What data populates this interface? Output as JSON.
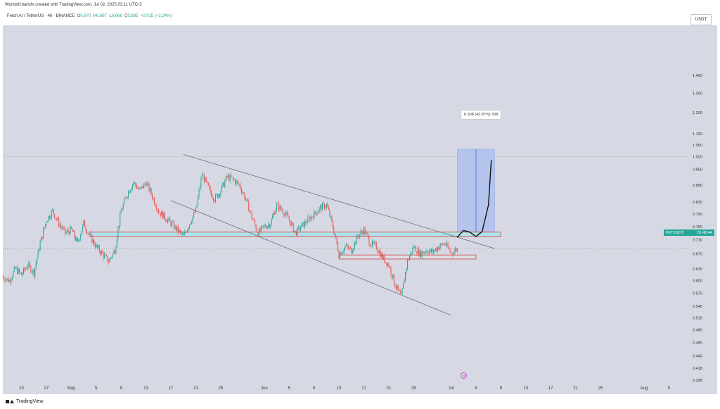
{
  "header": {
    "created_by": "Worldofchartsfx created with TradingView.com, Jul 02, 2025 03:11 UTC-3",
    "symbol": "Fetch.AI / TetherUS · 4h · BINANCE",
    "open_label": "O",
    "open": "0.670",
    "high_label": "H",
    "high": "0.687",
    "low_label": "L",
    "low": "0.666",
    "close_label": "C",
    "close": "0.685",
    "change": "+0.015 (+2.24%)"
  },
  "currency_badge": "USDT",
  "price_tag": {
    "symbol": "FETUSDT",
    "countdown": "01:48:44"
  },
  "measure": {
    "label": "0.308 (42.87%) 308"
  },
  "footer": {
    "brand": "TradingView"
  },
  "colors": {
    "background": "#d6d9e3",
    "bull": "#26a69a",
    "bear": "#ef5350",
    "support_zone_fill": "#aee3ea",
    "zone_border": "#d14b4b",
    "measure_fill": "#aec0ef",
    "measure_line": "#3e6ee0",
    "trend_line": "#6b6e78",
    "price_line": "#7f7f7f"
  },
  "chart_data": {
    "type": "candlestick",
    "y_scale": "log",
    "ylim": [
      0.398,
      1.72
    ],
    "y_ticks": [
      {
        "value": 1.4,
        "label": "1.400"
      },
      {
        "value": 1.3,
        "label": "1.300"
      },
      {
        "value": 1.2,
        "label": "1.200"
      },
      {
        "value": 1.1,
        "label": "1.100"
      },
      {
        "value": 1.05,
        "label": "1.050"
      },
      {
        "value": 1.0,
        "label": "1.000"
      },
      {
        "value": 0.95,
        "label": "0.950"
      },
      {
        "value": 0.89,
        "label": "0.890"
      },
      {
        "value": 0.83,
        "label": "0.830"
      },
      {
        "value": 0.79,
        "label": "0.790"
      },
      {
        "value": 0.75,
        "label": "0.750"
      },
      {
        "value": 0.71,
        "label": "0.710"
      },
      {
        "value": 0.67,
        "label": "0.670"
      },
      {
        "value": 0.63,
        "label": "0.630"
      },
      {
        "value": 0.6,
        "label": "0.600"
      },
      {
        "value": 0.57,
        "label": "0.570"
      },
      {
        "value": 0.54,
        "label": "0.540"
      },
      {
        "value": 0.515,
        "label": "0.515"
      },
      {
        "value": 0.49,
        "label": "0.490"
      },
      {
        "value": 0.465,
        "label": "0.465"
      },
      {
        "value": 0.44,
        "label": "0.440"
      },
      {
        "value": 0.418,
        "label": "0.418"
      },
      {
        "value": 0.398,
        "label": "0.398"
      }
    ],
    "x_ticks": [
      {
        "date": "2025-04-23",
        "label": "23"
      },
      {
        "date": "2025-04-27",
        "label": "27"
      },
      {
        "date": "2025-05-01",
        "label": "May"
      },
      {
        "date": "2025-05-05",
        "label": "5"
      },
      {
        "date": "2025-05-09",
        "label": "9"
      },
      {
        "date": "2025-05-13",
        "label": "13"
      },
      {
        "date": "2025-05-17",
        "label": "17"
      },
      {
        "date": "2025-05-21",
        "label": "21"
      },
      {
        "date": "2025-05-25",
        "label": "25"
      },
      {
        "date": "2025-06-01",
        "label": "Jun"
      },
      {
        "date": "2025-06-05",
        "label": "5"
      },
      {
        "date": "2025-06-09",
        "label": "9"
      },
      {
        "date": "2025-06-13",
        "label": "13"
      },
      {
        "date": "2025-06-17",
        "label": "17"
      },
      {
        "date": "2025-06-21",
        "label": "21"
      },
      {
        "date": "2025-06-25",
        "label": "25"
      },
      {
        "date": "2025-07-01",
        "label": "Jul"
      },
      {
        "date": "2025-07-05",
        "label": "5"
      },
      {
        "date": "2025-07-09",
        "label": "9"
      },
      {
        "date": "2025-07-13",
        "label": "13"
      },
      {
        "date": "2025-07-17",
        "label": "17"
      },
      {
        "date": "2025-07-21",
        "label": "21"
      },
      {
        "date": "2025-07-25",
        "label": "25"
      },
      {
        "date": "2025-08-01",
        "label": "Aug"
      },
      {
        "date": "2025-08-05",
        "label": "5"
      }
    ],
    "x_range": [
      "2025-04-20",
      "2025-08-08"
    ],
    "last_price": 0.685,
    "candle_path": [
      [
        "2025-04-20",
        0.61
      ],
      [
        "2025-04-21",
        0.6
      ],
      [
        "2025-04-22",
        0.63
      ],
      [
        "2025-04-23",
        0.615
      ],
      [
        "2025-04-24",
        0.64
      ],
      [
        "2025-04-25",
        0.62
      ],
      [
        "2025-04-26",
        0.7
      ],
      [
        "2025-04-27",
        0.77
      ],
      [
        "2025-04-28",
        0.8
      ],
      [
        "2025-04-29",
        0.76
      ],
      [
        "2025-04-30",
        0.73
      ],
      [
        "2025-05-01",
        0.74
      ],
      [
        "2025-05-02",
        0.7
      ],
      [
        "2025-05-03",
        0.76
      ],
      [
        "2025-05-04",
        0.72
      ],
      [
        "2025-05-05",
        0.69
      ],
      [
        "2025-05-06",
        0.67
      ],
      [
        "2025-05-07",
        0.65
      ],
      [
        "2025-05-08",
        0.68
      ],
      [
        "2025-05-09",
        0.8
      ],
      [
        "2025-05-10",
        0.86
      ],
      [
        "2025-05-11",
        0.9
      ],
      [
        "2025-05-12",
        0.87
      ],
      [
        "2025-05-13",
        0.9
      ],
      [
        "2025-05-14",
        0.85
      ],
      [
        "2025-05-15",
        0.8
      ],
      [
        "2025-05-16",
        0.78
      ],
      [
        "2025-05-17",
        0.76
      ],
      [
        "2025-05-18",
        0.74
      ],
      [
        "2025-05-19",
        0.72
      ],
      [
        "2025-05-20",
        0.76
      ],
      [
        "2025-05-21",
        0.8
      ],
      [
        "2025-05-22",
        0.93
      ],
      [
        "2025-05-23",
        0.88
      ],
      [
        "2025-05-24",
        0.84
      ],
      [
        "2025-05-25",
        0.87
      ],
      [
        "2025-05-26",
        0.92
      ],
      [
        "2025-05-27",
        0.91
      ],
      [
        "2025-05-28",
        0.89
      ],
      [
        "2025-05-29",
        0.84
      ],
      [
        "2025-05-30",
        0.78
      ],
      [
        "2025-05-31",
        0.73
      ],
      [
        "2025-06-01",
        0.75
      ],
      [
        "2025-06-02",
        0.76
      ],
      [
        "2025-06-03",
        0.82
      ],
      [
        "2025-06-04",
        0.8
      ],
      [
        "2025-06-05",
        0.77
      ],
      [
        "2025-06-06",
        0.73
      ],
      [
        "2025-06-07",
        0.75
      ],
      [
        "2025-06-08",
        0.77
      ],
      [
        "2025-06-09",
        0.79
      ],
      [
        "2025-06-10",
        0.81
      ],
      [
        "2025-06-11",
        0.82
      ],
      [
        "2025-06-12",
        0.75
      ],
      [
        "2025-06-13",
        0.67
      ],
      [
        "2025-06-14",
        0.69
      ],
      [
        "2025-06-15",
        0.68
      ],
      [
        "2025-06-16",
        0.72
      ],
      [
        "2025-06-17",
        0.74
      ],
      [
        "2025-06-18",
        0.7
      ],
      [
        "2025-06-19",
        0.69
      ],
      [
        "2025-06-20",
        0.66
      ],
      [
        "2025-06-21",
        0.64
      ],
      [
        "2025-06-22",
        0.59
      ],
      [
        "2025-06-23",
        0.56
      ],
      [
        "2025-06-24",
        0.65
      ],
      [
        "2025-06-25",
        0.69
      ],
      [
        "2025-06-26",
        0.67
      ],
      [
        "2025-06-27",
        0.68
      ],
      [
        "2025-06-28",
        0.675
      ],
      [
        "2025-06-29",
        0.69
      ],
      [
        "2025-06-30",
        0.7
      ],
      [
        "2025-07-01",
        0.672
      ],
      [
        "2025-07-02",
        0.685
      ]
    ],
    "annotations": {
      "descending_channel_upper": [
        [
          "2025-05-19",
          1.01
        ],
        [
          "2025-07-08",
          0.685
        ]
      ],
      "descending_channel_lower": [
        [
          "2025-05-17",
          0.835
        ],
        [
          "2025-07-01",
          0.52
        ]
      ],
      "support_zone": {
        "start": "2025-05-04",
        "end": "2025-07-09",
        "top": 0.733,
        "bottom": 0.72
      },
      "demand_zone": {
        "start": "2025-06-13",
        "end": "2025-07-05",
        "top": 0.667,
        "bottom": 0.656
      },
      "measure_box": {
        "start": "2025-07-02",
        "end": "2025-07-08",
        "top": 1.032,
        "bottom": 0.72
      },
      "projection_path": [
        [
          "2025-07-02",
          0.718
        ],
        [
          "2025-07-03",
          0.738
        ],
        [
          "2025-07-04",
          0.733
        ],
        [
          "2025-07-05",
          0.72
        ],
        [
          "2025-07-06",
          0.735
        ],
        [
          "2025-07-07",
          0.82
        ],
        [
          "2025-07-07",
          0.985
        ]
      ]
    }
  }
}
